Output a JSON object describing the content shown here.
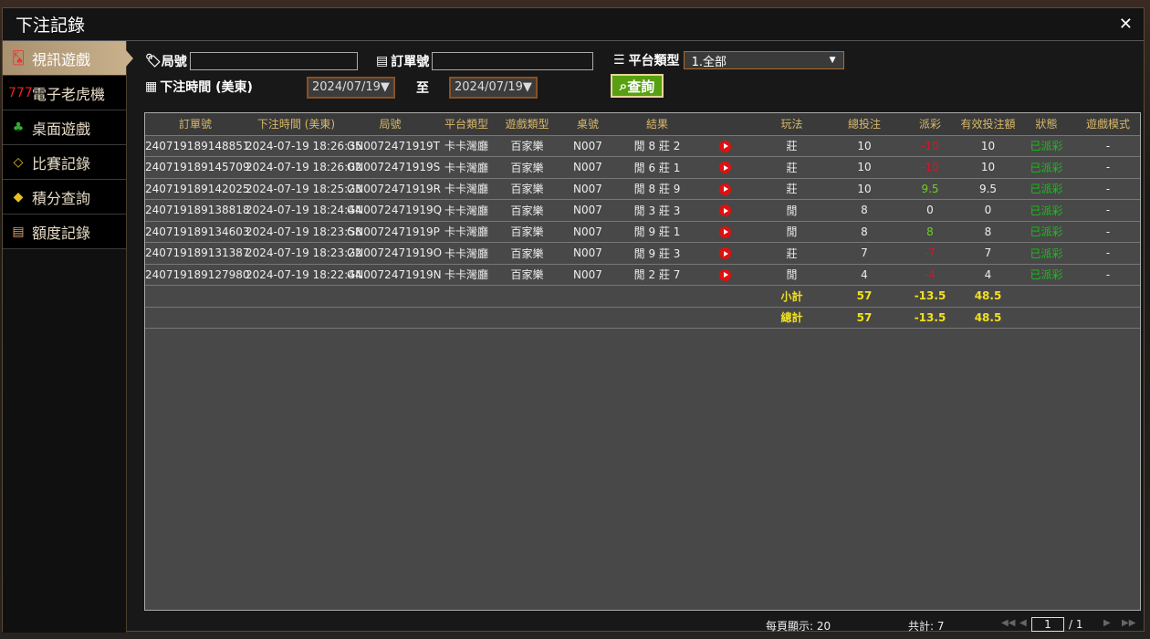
{
  "title": "下注記錄",
  "close": "✕",
  "sidebar": {
    "items": [
      {
        "label": "視訊遊戲",
        "icon": "playing-cards-icon",
        "glyph": "🂮",
        "active": true
      },
      {
        "label": "電子老虎機",
        "icon": "slot-777-icon",
        "glyph": "777"
      },
      {
        "label": "桌面遊戲",
        "icon": "chips-icon",
        "glyph": "♣"
      },
      {
        "label": "比賽記錄",
        "icon": "ticket-icon",
        "glyph": "◇"
      },
      {
        "label": "積分查詢",
        "icon": "diamond-icon",
        "glyph": "◆"
      },
      {
        "label": "額度記錄",
        "icon": "document-icon",
        "glyph": "▤"
      }
    ]
  },
  "filters": {
    "round_label": "局號",
    "round_value": "",
    "order_label": "訂單號",
    "order_value": "",
    "platform_label": "平台類型",
    "platform_value": "1.全部",
    "time_label": "下注時間 (美東)",
    "date_from": "2024/07/19▼",
    "to_label": "至",
    "date_to": "2024/07/19▼",
    "query_label": "查詢"
  },
  "table": {
    "headers": [
      "訂單號",
      "下注時間 (美東)",
      "局號",
      "平台類型",
      "遊戲類型",
      "桌號",
      "結果",
      "",
      "玩法",
      "總投注",
      "派彩",
      "有效投注額",
      "狀態",
      "遊戲模式"
    ],
    "rows": [
      [
        "240719189148851",
        "2024-07-19 18:26:35",
        "GN0072471919T",
        "卡卡灣廳",
        "百家樂",
        "N007",
        "閒 8 莊 2",
        "",
        "莊",
        "10",
        "-10",
        "10",
        "已派彩",
        "-"
      ],
      [
        "240719189145709",
        "2024-07-19 18:26:02",
        "GN0072471919S",
        "卡卡灣廳",
        "百家樂",
        "N007",
        "閒 6 莊 1",
        "",
        "莊",
        "10",
        "-10",
        "10",
        "已派彩",
        "-"
      ],
      [
        "240719189142025",
        "2024-07-19 18:25:23",
        "GN0072471919R",
        "卡卡灣廳",
        "百家樂",
        "N007",
        "閒 8 莊 9",
        "",
        "莊",
        "10",
        "9.5",
        "9.5",
        "已派彩",
        "-"
      ],
      [
        "240719189138818",
        "2024-07-19 18:24:44",
        "GN0072471919Q",
        "卡卡灣廳",
        "百家樂",
        "N007",
        "閒 3 莊 3",
        "",
        "閒",
        "8",
        "0",
        "0",
        "已派彩",
        "-"
      ],
      [
        "240719189134603",
        "2024-07-19 18:23:58",
        "GN0072471919P",
        "卡卡灣廳",
        "百家樂",
        "N007",
        "閒 9 莊 1",
        "",
        "閒",
        "8",
        "8",
        "8",
        "已派彩",
        "-"
      ],
      [
        "240719189131387",
        "2024-07-19 18:23:22",
        "GN0072471919O",
        "卡卡灣廳",
        "百家樂",
        "N007",
        "閒 9 莊 3",
        "",
        "莊",
        "7",
        "-7",
        "7",
        "已派彩",
        "-"
      ],
      [
        "240719189127980",
        "2024-07-19 18:22:44",
        "GN0072471919N",
        "卡卡灣廳",
        "百家樂",
        "N007",
        "閒 2 莊 7",
        "",
        "閒",
        "4",
        "-4",
        "4",
        "已派彩",
        "-"
      ]
    ],
    "subtotal": {
      "label": "小計",
      "bet": "57",
      "payout": "-13.5",
      "valid": "48.5"
    },
    "total": {
      "label": "總計",
      "bet": "57",
      "payout": "-13.5",
      "valid": "48.5"
    }
  },
  "footer": {
    "per_page": "每頁顯示: 20",
    "total": "共計: 7",
    "page": "1",
    "pages": "/  1"
  },
  "colors": {
    "accent": "#c8b08c",
    "header_text": "#d8b86a",
    "negative": "#d0182a",
    "positive": "#6cd020",
    "status": "#18c018",
    "summary": "#f0e020",
    "query_button": "#58a012"
  }
}
